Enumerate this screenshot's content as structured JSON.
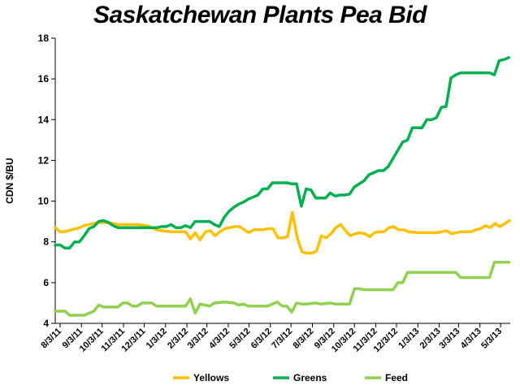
{
  "chart_data": {
    "type": "line",
    "title": "Saskatchewan Plants Pea Bid",
    "xlabel": "",
    "ylabel": "CDN $/BU",
    "ylim": [
      4,
      18
    ],
    "yticks": [
      4,
      6,
      8,
      10,
      12,
      14,
      16,
      18
    ],
    "x_domain": [
      "2011-07-27",
      "2013-05-17"
    ],
    "xticks": [
      {
        "label": "8/3/11",
        "date": "2011-08-03"
      },
      {
        "label": "9/3/11",
        "date": "2011-09-03"
      },
      {
        "label": "10/3/11",
        "date": "2011-10-03"
      },
      {
        "label": "11/3/11",
        "date": "2011-11-03"
      },
      {
        "label": "12/3/11",
        "date": "2011-12-03"
      },
      {
        "label": "1/3/12",
        "date": "2012-01-03"
      },
      {
        "label": "2/3/12",
        "date": "2012-02-03"
      },
      {
        "label": "3/3/12",
        "date": "2012-03-03"
      },
      {
        "label": "4/3/12",
        "date": "2012-04-03"
      },
      {
        "label": "5/3/12",
        "date": "2012-05-03"
      },
      {
        "label": "6/3/12",
        "date": "2012-06-03"
      },
      {
        "label": "7/3/12",
        "date": "2012-07-03"
      },
      {
        "label": "8/3/12",
        "date": "2012-08-03"
      },
      {
        "label": "9/3/12",
        "date": "2012-09-03"
      },
      {
        "label": "10/3/12",
        "date": "2012-10-03"
      },
      {
        "label": "11/3/12",
        "date": "2012-11-03"
      },
      {
        "label": "12/3/12",
        "date": "2012-12-03"
      },
      {
        "label": "1/3/13",
        "date": "2013-01-03"
      },
      {
        "label": "2/3/13",
        "date": "2013-02-03"
      },
      {
        "label": "3/3/13",
        "date": "2013-03-03"
      },
      {
        "label": "4/3/13",
        "date": "2013-04-03"
      },
      {
        "label": "5/3/13",
        "date": "2013-05-03"
      }
    ],
    "grid": false,
    "legend": "bottom",
    "series": [
      {
        "name": "Yellows",
        "color": "#FFC000",
        "points": [
          [
            "2011-07-27",
            8.7
          ],
          [
            "2011-08-03",
            8.5
          ],
          [
            "2011-08-10",
            8.5
          ],
          [
            "2011-08-31",
            8.7
          ],
          [
            "2011-09-07",
            8.8
          ],
          [
            "2011-09-21",
            8.9
          ],
          [
            "2011-09-28",
            8.95
          ],
          [
            "2011-10-12",
            8.95
          ],
          [
            "2011-10-26",
            8.85
          ],
          [
            "2011-11-09",
            8.85
          ],
          [
            "2011-11-23",
            8.85
          ],
          [
            "2011-12-07",
            8.8
          ],
          [
            "2011-12-21",
            8.6
          ],
          [
            "2011-12-28",
            8.55
          ],
          [
            "2012-01-11",
            8.5
          ],
          [
            "2012-01-25",
            8.5
          ],
          [
            "2012-02-01",
            8.5
          ],
          [
            "2012-02-08",
            8.15
          ],
          [
            "2012-02-15",
            8.45
          ],
          [
            "2012-02-22",
            8.1
          ],
          [
            "2012-03-01",
            8.5
          ],
          [
            "2012-03-08",
            8.55
          ],
          [
            "2012-03-15",
            8.3
          ],
          [
            "2012-03-22",
            8.5
          ],
          [
            "2012-03-29",
            8.65
          ],
          [
            "2012-04-05",
            8.7
          ],
          [
            "2012-04-12",
            8.75
          ],
          [
            "2012-04-19",
            8.75
          ],
          [
            "2012-04-26",
            8.6
          ],
          [
            "2012-05-03",
            8.45
          ],
          [
            "2012-05-10",
            8.6
          ],
          [
            "2012-05-24",
            8.6
          ],
          [
            "2012-05-31",
            8.65
          ],
          [
            "2012-06-07",
            8.65
          ],
          [
            "2012-06-14",
            8.2
          ],
          [
            "2012-06-21",
            8.2
          ],
          [
            "2012-06-28",
            8.25
          ],
          [
            "2012-07-05",
            9.45
          ],
          [
            "2012-07-12",
            8.2
          ],
          [
            "2012-07-19",
            7.5
          ],
          [
            "2012-07-26",
            7.45
          ],
          [
            "2012-08-02",
            7.45
          ],
          [
            "2012-08-09",
            7.55
          ],
          [
            "2012-08-16",
            8.3
          ],
          [
            "2012-08-23",
            8.2
          ],
          [
            "2012-08-30",
            8.4
          ],
          [
            "2012-09-06",
            8.7
          ],
          [
            "2012-09-13",
            8.85
          ],
          [
            "2012-09-20",
            8.55
          ],
          [
            "2012-09-27",
            8.3
          ],
          [
            "2012-10-04",
            8.4
          ],
          [
            "2012-10-11",
            8.45
          ],
          [
            "2012-10-18",
            8.4
          ],
          [
            "2012-10-25",
            8.25
          ],
          [
            "2012-11-01",
            8.45
          ],
          [
            "2012-11-08",
            8.5
          ],
          [
            "2012-11-15",
            8.5
          ],
          [
            "2012-11-22",
            8.7
          ],
          [
            "2012-11-29",
            8.75
          ],
          [
            "2012-12-06",
            8.6
          ],
          [
            "2012-12-13",
            8.6
          ],
          [
            "2012-12-20",
            8.5
          ],
          [
            "2013-01-03",
            8.45
          ],
          [
            "2013-01-17",
            8.45
          ],
          [
            "2013-01-31",
            8.45
          ],
          [
            "2013-02-07",
            8.5
          ],
          [
            "2013-02-14",
            8.55
          ],
          [
            "2013-02-21",
            8.4
          ],
          [
            "2013-03-07",
            8.5
          ],
          [
            "2013-03-21",
            8.5
          ],
          [
            "2013-03-28",
            8.6
          ],
          [
            "2013-04-04",
            8.65
          ],
          [
            "2013-04-11",
            8.8
          ],
          [
            "2013-04-18",
            8.7
          ],
          [
            "2013-04-25",
            8.9
          ],
          [
            "2013-05-02",
            8.75
          ],
          [
            "2013-05-09",
            8.9
          ],
          [
            "2013-05-16",
            9.05
          ]
        ]
      },
      {
        "name": "Greens",
        "color": "#00B050",
        "points": [
          [
            "2011-07-27",
            7.85
          ],
          [
            "2011-08-03",
            7.85
          ],
          [
            "2011-08-10",
            7.7
          ],
          [
            "2011-08-17",
            7.7
          ],
          [
            "2011-08-24",
            8.0
          ],
          [
            "2011-08-31",
            8.0
          ],
          [
            "2011-09-07",
            8.3
          ],
          [
            "2011-09-14",
            8.65
          ],
          [
            "2011-09-21",
            8.75
          ],
          [
            "2011-09-28",
            9.0
          ],
          [
            "2011-10-05",
            9.05
          ],
          [
            "2011-10-12",
            8.95
          ],
          [
            "2011-10-19",
            8.8
          ],
          [
            "2011-10-26",
            8.7
          ],
          [
            "2011-11-09",
            8.7
          ],
          [
            "2011-11-23",
            8.7
          ],
          [
            "2011-12-07",
            8.7
          ],
          [
            "2011-12-21",
            8.7
          ],
          [
            "2011-12-28",
            8.75
          ],
          [
            "2012-01-04",
            8.75
          ],
          [
            "2012-01-11",
            8.85
          ],
          [
            "2012-01-18",
            8.7
          ],
          [
            "2012-01-25",
            8.7
          ],
          [
            "2012-02-01",
            8.8
          ],
          [
            "2012-02-08",
            8.7
          ],
          [
            "2012-02-15",
            9.0
          ],
          [
            "2012-02-22",
            9.0
          ],
          [
            "2012-03-07",
            9.0
          ],
          [
            "2012-03-14",
            8.85
          ],
          [
            "2012-03-21",
            8.75
          ],
          [
            "2012-03-28",
            9.2
          ],
          [
            "2012-04-04",
            9.5
          ],
          [
            "2012-04-11",
            9.7
          ],
          [
            "2012-04-18",
            9.85
          ],
          [
            "2012-04-25",
            9.95
          ],
          [
            "2012-05-02",
            10.1
          ],
          [
            "2012-05-09",
            10.2
          ],
          [
            "2012-05-16",
            10.3
          ],
          [
            "2012-05-23",
            10.6
          ],
          [
            "2012-05-30",
            10.6
          ],
          [
            "2012-06-06",
            10.9
          ],
          [
            "2012-06-13",
            10.9
          ],
          [
            "2012-06-20",
            10.9
          ],
          [
            "2012-06-27",
            10.9
          ],
          [
            "2012-07-04",
            10.85
          ],
          [
            "2012-07-11",
            10.85
          ],
          [
            "2012-07-18",
            9.75
          ],
          [
            "2012-07-25",
            10.6
          ],
          [
            "2012-08-01",
            10.55
          ],
          [
            "2012-08-08",
            10.15
          ],
          [
            "2012-08-15",
            10.15
          ],
          [
            "2012-08-22",
            10.15
          ],
          [
            "2012-08-29",
            10.4
          ],
          [
            "2012-09-05",
            10.25
          ],
          [
            "2012-09-12",
            10.3
          ],
          [
            "2012-09-19",
            10.3
          ],
          [
            "2012-09-26",
            10.35
          ],
          [
            "2012-10-03",
            10.7
          ],
          [
            "2012-10-10",
            10.85
          ],
          [
            "2012-10-17",
            11.0
          ],
          [
            "2012-10-24",
            11.3
          ],
          [
            "2012-10-31",
            11.4
          ],
          [
            "2012-11-07",
            11.5
          ],
          [
            "2012-11-14",
            11.5
          ],
          [
            "2012-11-21",
            11.7
          ],
          [
            "2012-11-28",
            12.1
          ],
          [
            "2012-12-05",
            12.5
          ],
          [
            "2012-12-12",
            12.9
          ],
          [
            "2012-12-19",
            13.0
          ],
          [
            "2012-12-26",
            13.6
          ],
          [
            "2013-01-02",
            13.6
          ],
          [
            "2013-01-09",
            13.6
          ],
          [
            "2013-01-16",
            14.0
          ],
          [
            "2013-01-23",
            14.0
          ],
          [
            "2013-01-30",
            14.1
          ],
          [
            "2013-02-06",
            14.6
          ],
          [
            "2013-02-13",
            14.65
          ],
          [
            "2013-02-20",
            16.05
          ],
          [
            "2013-02-27",
            16.2
          ],
          [
            "2013-03-06",
            16.3
          ],
          [
            "2013-03-20",
            16.3
          ],
          [
            "2013-04-03",
            16.3
          ],
          [
            "2013-04-17",
            16.3
          ],
          [
            "2013-04-24",
            16.2
          ],
          [
            "2013-05-01",
            16.9
          ],
          [
            "2013-05-08",
            16.95
          ],
          [
            "2013-05-15",
            17.05
          ]
        ]
      },
      {
        "name": "Feed",
        "color": "#92D050",
        "points": [
          [
            "2011-07-27",
            4.6
          ],
          [
            "2011-08-10",
            4.6
          ],
          [
            "2011-08-17",
            4.4
          ],
          [
            "2011-08-24",
            4.4
          ],
          [
            "2011-09-07",
            4.4
          ],
          [
            "2011-09-14",
            4.5
          ],
          [
            "2011-09-21",
            4.6
          ],
          [
            "2011-09-28",
            4.9
          ],
          [
            "2011-10-05",
            4.8
          ],
          [
            "2011-10-12",
            4.8
          ],
          [
            "2011-10-19",
            4.8
          ],
          [
            "2011-10-26",
            4.8
          ],
          [
            "2011-11-02",
            5.0
          ],
          [
            "2011-11-09",
            5.0
          ],
          [
            "2011-11-16",
            4.85
          ],
          [
            "2011-11-23",
            4.85
          ],
          [
            "2011-11-30",
            5.0
          ],
          [
            "2011-12-07",
            5.0
          ],
          [
            "2011-12-14",
            5.0
          ],
          [
            "2011-12-21",
            4.85
          ],
          [
            "2012-01-04",
            4.85
          ],
          [
            "2012-01-18",
            4.85
          ],
          [
            "2012-02-01",
            4.85
          ],
          [
            "2012-02-08",
            5.2
          ],
          [
            "2012-02-15",
            4.5
          ],
          [
            "2012-02-22",
            4.95
          ],
          [
            "2012-03-07",
            4.85
          ],
          [
            "2012-03-14",
            5.0
          ],
          [
            "2012-03-28",
            5.05
          ],
          [
            "2012-04-11",
            5.0
          ],
          [
            "2012-04-18",
            4.9
          ],
          [
            "2012-04-25",
            4.95
          ],
          [
            "2012-05-02",
            4.85
          ],
          [
            "2012-05-16",
            4.85
          ],
          [
            "2012-05-30",
            4.85
          ],
          [
            "2012-06-06",
            4.95
          ],
          [
            "2012-06-13",
            5.05
          ],
          [
            "2012-06-20",
            4.85
          ],
          [
            "2012-06-27",
            4.85
          ],
          [
            "2012-07-04",
            4.55
          ],
          [
            "2012-07-11",
            5.0
          ],
          [
            "2012-07-18",
            4.95
          ],
          [
            "2012-07-25",
            4.95
          ],
          [
            "2012-08-08",
            5.0
          ],
          [
            "2012-08-15",
            4.95
          ],
          [
            "2012-08-29",
            5.0
          ],
          [
            "2012-09-05",
            4.95
          ],
          [
            "2012-09-12",
            4.95
          ],
          [
            "2012-09-26",
            4.95
          ],
          [
            "2012-10-03",
            5.7
          ],
          [
            "2012-10-10",
            5.7
          ],
          [
            "2012-10-17",
            5.65
          ],
          [
            "2012-10-31",
            5.65
          ],
          [
            "2012-11-14",
            5.65
          ],
          [
            "2012-11-28",
            5.65
          ],
          [
            "2012-12-05",
            6.0
          ],
          [
            "2012-12-12",
            6.0
          ],
          [
            "2012-12-19",
            6.5
          ],
          [
            "2013-01-02",
            6.5
          ],
          [
            "2013-01-16",
            6.5
          ],
          [
            "2013-01-30",
            6.5
          ],
          [
            "2013-02-13",
            6.5
          ],
          [
            "2013-02-27",
            6.5
          ],
          [
            "2013-03-06",
            6.25
          ],
          [
            "2013-03-20",
            6.25
          ],
          [
            "2013-04-03",
            6.25
          ],
          [
            "2013-04-17",
            6.25
          ],
          [
            "2013-04-24",
            7.0
          ],
          [
            "2013-05-01",
            7.0
          ],
          [
            "2013-05-15",
            7.0
          ]
        ]
      }
    ]
  }
}
